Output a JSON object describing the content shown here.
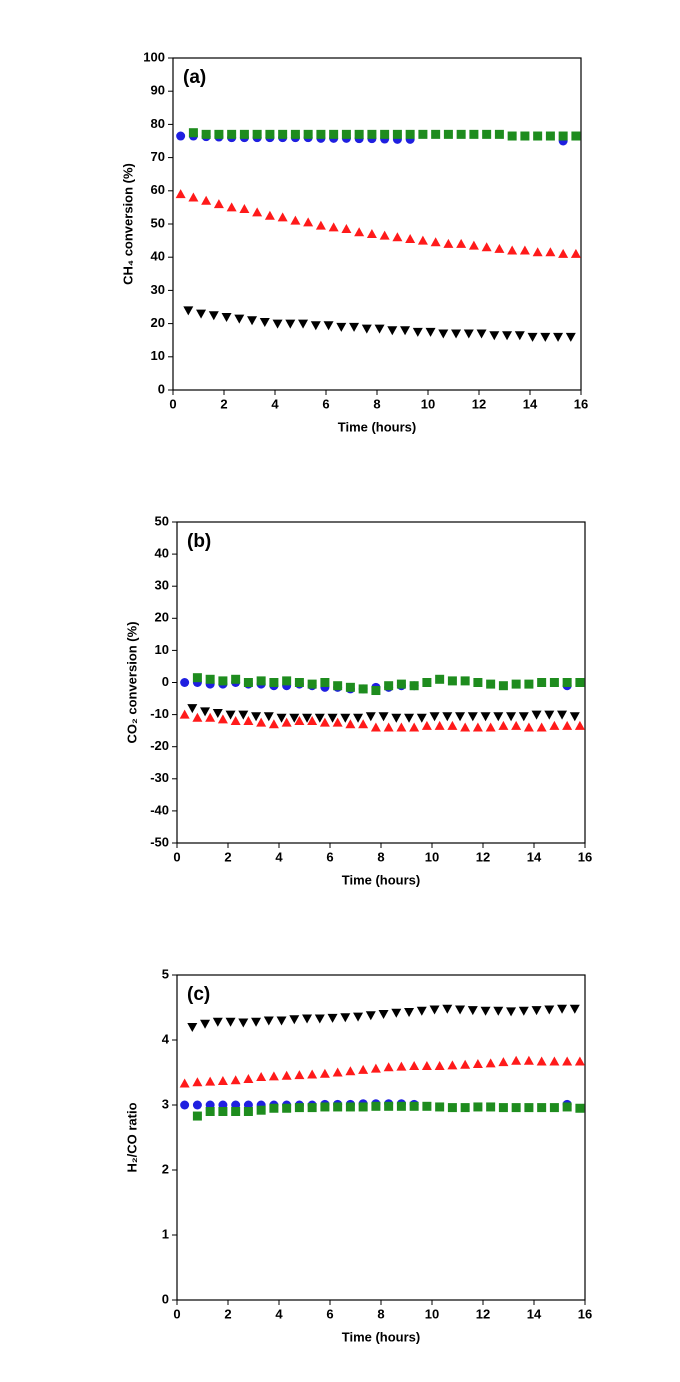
{
  "chart_data": [
    {
      "type": "scatter",
      "annotation": "(a)",
      "xlabel": "Time (hours)",
      "ylabel": "CH₄ conversion (%)",
      "xlim": [
        0,
        16
      ],
      "xticks": [
        0,
        2,
        4,
        6,
        8,
        10,
        12,
        14,
        16
      ],
      "ylim": [
        0,
        100
      ],
      "yticks": [
        0,
        10,
        20,
        30,
        40,
        50,
        60,
        70,
        80,
        90,
        100
      ],
      "series": [
        {
          "color": "#1f1fe0",
          "marker": "circle",
          "x": [
            0.3,
            0.8,
            1.3,
            1.8,
            2.3,
            2.8,
            3.3,
            3.8,
            4.3,
            4.8,
            5.3,
            5.8,
            6.3,
            6.8,
            7.3,
            7.8,
            8.3,
            8.8,
            9.3,
            15.3
          ],
          "values": [
            76.5,
            76.5,
            76.3,
            76.2,
            76,
            76,
            76,
            76,
            76,
            76,
            76,
            75.8,
            75.8,
            75.8,
            75.7,
            75.7,
            75.6,
            75.5,
            75.5,
            75
          ]
        },
        {
          "color": "#1e8c1e",
          "marker": "square",
          "x": [
            0.8,
            1.3,
            1.8,
            2.3,
            2.8,
            3.3,
            3.8,
            4.3,
            4.8,
            5.3,
            5.8,
            6.3,
            6.8,
            7.3,
            7.8,
            8.3,
            8.8,
            9.3,
            9.8,
            10.3,
            10.8,
            11.3,
            11.8,
            12.3,
            12.8,
            13.3,
            13.8,
            14.3,
            14.8,
            15.3,
            15.8
          ],
          "values": [
            77.5,
            77,
            77,
            77,
            77,
            77,
            77,
            77,
            77,
            77,
            77,
            77,
            77,
            77,
            77,
            77,
            77,
            77,
            77,
            77,
            77,
            77,
            77,
            77,
            77,
            76.5,
            76.5,
            76.5,
            76.5,
            76.5,
            76.5
          ]
        },
        {
          "color": "#ff1a1a",
          "marker": "triangle-up",
          "x": [
            0.3,
            0.8,
            1.3,
            1.8,
            2.3,
            2.8,
            3.3,
            3.8,
            4.3,
            4.8,
            5.3,
            5.8,
            6.3,
            6.8,
            7.3,
            7.8,
            8.3,
            8.8,
            9.3,
            9.8,
            10.3,
            10.8,
            11.3,
            11.8,
            12.3,
            12.8,
            13.3,
            13.8,
            14.3,
            14.8,
            15.3,
            15.8
          ],
          "values": [
            59,
            58,
            57,
            56,
            55,
            54.5,
            53.5,
            52.5,
            52,
            51,
            50.5,
            49.5,
            49,
            48.5,
            47.5,
            47,
            46.5,
            46,
            45.5,
            45,
            44.5,
            44,
            44,
            43.5,
            43,
            42.5,
            42,
            42,
            41.5,
            41.5,
            41,
            41
          ]
        },
        {
          "color": "#000000",
          "marker": "triangle-down",
          "x": [
            0.6,
            1.1,
            1.6,
            2.1,
            2.6,
            3.1,
            3.6,
            4.1,
            4.6,
            5.1,
            5.6,
            6.1,
            6.6,
            7.1,
            7.6,
            8.1,
            8.6,
            9.1,
            9.6,
            10.1,
            10.6,
            11.1,
            11.6,
            12.1,
            12.6,
            13.1,
            13.6,
            14.1,
            14.6,
            15.1,
            15.6
          ],
          "values": [
            24,
            23,
            22.5,
            22,
            21.5,
            21,
            20.5,
            20,
            20,
            20,
            19.5,
            19.5,
            19,
            19,
            18.5,
            18.5,
            18,
            18,
            17.5,
            17.5,
            17,
            17,
            17,
            17,
            16.5,
            16.5,
            16.5,
            16,
            16,
            16,
            16
          ]
        }
      ]
    },
    {
      "type": "scatter",
      "annotation": "(b)",
      "xlabel": "Time (hours)",
      "ylabel": "CO₂ conversion (%)",
      "xlim": [
        0,
        16
      ],
      "xticks": [
        0,
        2,
        4,
        6,
        8,
        10,
        12,
        14,
        16
      ],
      "ylim": [
        -50,
        50
      ],
      "yticks": [
        -50,
        -40,
        -30,
        -20,
        -10,
        0,
        10,
        20,
        30,
        40,
        50
      ],
      "series": [
        {
          "color": "#1f1fe0",
          "marker": "circle",
          "x": [
            0.3,
            0.8,
            1.3,
            1.8,
            2.3,
            2.8,
            3.3,
            3.8,
            4.3,
            4.8,
            5.3,
            5.8,
            6.3,
            6.8,
            7.3,
            7.8,
            8.3,
            8.8,
            9.3,
            15.3
          ],
          "values": [
            0,
            0,
            -0.5,
            -0.5,
            0,
            -0.5,
            -0.5,
            -1,
            -1,
            -0.5,
            -1,
            -1.5,
            -1.5,
            -2,
            -2,
            -1.5,
            -1.5,
            -1,
            -1,
            -1
          ]
        },
        {
          "color": "#1e8c1e",
          "marker": "square",
          "x": [
            0.8,
            1.3,
            1.8,
            2.3,
            2.8,
            3.3,
            3.8,
            4.3,
            4.8,
            5.3,
            5.8,
            6.3,
            6.8,
            7.3,
            7.8,
            8.3,
            8.8,
            9.3,
            9.8,
            10.3,
            10.8,
            11.3,
            11.8,
            12.3,
            12.8,
            13.3,
            13.8,
            14.3,
            14.8,
            15.3,
            15.8
          ],
          "values": [
            1.5,
            1,
            0.5,
            1,
            0,
            0.5,
            0,
            0.5,
            0,
            -0.5,
            0,
            -1,
            -1.5,
            -2,
            -2.5,
            -1,
            -0.5,
            -1,
            0,
            1,
            0.5,
            0.5,
            0,
            -0.5,
            -1,
            -0.5,
            -0.5,
            0,
            0,
            0,
            0
          ]
        },
        {
          "color": "#ff1a1a",
          "marker": "triangle-up",
          "x": [
            0.3,
            0.8,
            1.3,
            1.8,
            2.3,
            2.8,
            3.3,
            3.8,
            4.3,
            4.8,
            5.3,
            5.8,
            6.3,
            6.8,
            7.3,
            7.8,
            8.3,
            8.8,
            9.3,
            9.8,
            10.3,
            10.8,
            11.3,
            11.8,
            12.3,
            12.8,
            13.3,
            13.8,
            14.3,
            14.8,
            15.3,
            15.8
          ],
          "values": [
            -10,
            -11,
            -11,
            -11.5,
            -12,
            -12,
            -12.5,
            -13,
            -12.5,
            -12,
            -12,
            -12.5,
            -12.5,
            -13,
            -13,
            -14,
            -14,
            -14,
            -14,
            -13.5,
            -13.5,
            -13.5,
            -14,
            -14,
            -14,
            -13.5,
            -13.5,
            -14,
            -14,
            -13.5,
            -13.5,
            -13.5
          ]
        },
        {
          "color": "#000000",
          "marker": "triangle-down",
          "x": [
            0.6,
            1.1,
            1.6,
            2.1,
            2.6,
            3.1,
            3.6,
            4.1,
            4.6,
            5.1,
            5.6,
            6.1,
            6.6,
            7.1,
            7.6,
            8.1,
            8.6,
            9.1,
            9.6,
            10.1,
            10.6,
            11.1,
            11.6,
            12.1,
            12.6,
            13.1,
            13.6,
            14.1,
            14.6,
            15.1,
            15.6
          ],
          "values": [
            -8,
            -9,
            -9.5,
            -10,
            -10,
            -10.5,
            -10.5,
            -11,
            -11,
            -11,
            -11,
            -11,
            -11,
            -11,
            -10.5,
            -10.5,
            -11,
            -11,
            -11,
            -10.5,
            -10.5,
            -10.5,
            -10.5,
            -10.5,
            -10.5,
            -10.5,
            -10.5,
            -10,
            -10,
            -10,
            -10.5
          ]
        }
      ]
    },
    {
      "type": "scatter",
      "annotation": "(c)",
      "xlabel": "Time (hours)",
      "ylabel": "H₂/CO ratio",
      "xlim": [
        0,
        16
      ],
      "xticks": [
        0,
        2,
        4,
        6,
        8,
        10,
        12,
        14,
        16
      ],
      "ylim": [
        0,
        5
      ],
      "yticks": [
        0,
        1,
        2,
        3,
        4,
        5
      ],
      "series": [
        {
          "color": "#1f1fe0",
          "marker": "circle",
          "x": [
            0.3,
            0.8,
            1.3,
            1.8,
            2.3,
            2.8,
            3.3,
            3.8,
            4.3,
            4.8,
            5.3,
            5.8,
            6.3,
            6.8,
            7.3,
            7.8,
            8.3,
            8.8,
            9.3,
            15.3
          ],
          "values": [
            3.0,
            3.0,
            3.0,
            3.0,
            3.0,
            3.0,
            3.0,
            3.0,
            3.0,
            3.0,
            3.0,
            3.01,
            3.01,
            3.01,
            3.02,
            3.02,
            3.02,
            3.02,
            3.01,
            3.01
          ]
        },
        {
          "color": "#1e8c1e",
          "marker": "square",
          "x": [
            0.8,
            1.3,
            1.8,
            2.3,
            2.8,
            3.3,
            3.8,
            4.3,
            4.8,
            5.3,
            5.8,
            6.3,
            6.8,
            7.3,
            7.8,
            8.3,
            8.8,
            9.3,
            9.8,
            10.3,
            10.8,
            11.3,
            11.8,
            12.3,
            12.8,
            13.3,
            13.8,
            14.3,
            14.8,
            15.3,
            15.8
          ],
          "values": [
            2.83,
            2.9,
            2.9,
            2.9,
            2.9,
            2.92,
            2.95,
            2.95,
            2.96,
            2.96,
            2.97,
            2.97,
            2.97,
            2.97,
            2.98,
            2.98,
            2.98,
            2.98,
            2.98,
            2.97,
            2.96,
            2.96,
            2.97,
            2.97,
            2.96,
            2.96,
            2.96,
            2.96,
            2.96,
            2.97,
            2.95
          ]
        },
        {
          "color": "#ff1a1a",
          "marker": "triangle-up",
          "x": [
            0.3,
            0.8,
            1.3,
            1.8,
            2.3,
            2.8,
            3.3,
            3.8,
            4.3,
            4.8,
            5.3,
            5.8,
            6.3,
            6.8,
            7.3,
            7.8,
            8.3,
            8.8,
            9.3,
            9.8,
            10.3,
            10.8,
            11.3,
            11.8,
            12.3,
            12.8,
            13.3,
            13.8,
            14.3,
            14.8,
            15.3,
            15.8
          ],
          "values": [
            3.33,
            3.35,
            3.36,
            3.37,
            3.38,
            3.4,
            3.43,
            3.44,
            3.45,
            3.46,
            3.47,
            3.48,
            3.5,
            3.52,
            3.54,
            3.56,
            3.58,
            3.59,
            3.6,
            3.6,
            3.6,
            3.61,
            3.62,
            3.63,
            3.64,
            3.66,
            3.68,
            3.68,
            3.67,
            3.67,
            3.67,
            3.67
          ]
        },
        {
          "color": "#000000",
          "marker": "triangle-down",
          "x": [
            0.6,
            1.1,
            1.6,
            2.1,
            2.6,
            3.1,
            3.6,
            4.1,
            4.6,
            5.1,
            5.6,
            6.1,
            6.6,
            7.1,
            7.6,
            8.1,
            8.6,
            9.1,
            9.6,
            10.1,
            10.6,
            11.1,
            11.6,
            12.1,
            12.6,
            13.1,
            13.6,
            14.1,
            14.6,
            15.1,
            15.6
          ],
          "values": [
            4.2,
            4.25,
            4.28,
            4.28,
            4.27,
            4.28,
            4.3,
            4.3,
            4.32,
            4.33,
            4.33,
            4.34,
            4.35,
            4.36,
            4.38,
            4.4,
            4.42,
            4.43,
            4.45,
            4.47,
            4.48,
            4.47,
            4.46,
            4.45,
            4.45,
            4.44,
            4.45,
            4.46,
            4.47,
            4.48,
            4.48
          ]
        }
      ]
    }
  ]
}
